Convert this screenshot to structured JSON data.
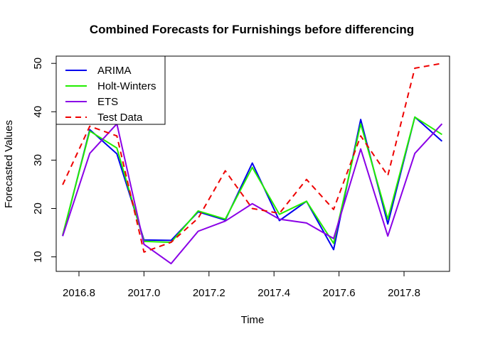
{
  "chart_data": {
    "type": "line",
    "title": "Combined Forecasts for Furnishings before differencing",
    "xlabel": "Time",
    "ylabel": "Forecasted Values",
    "xlim": [
      2016.73,
      2017.94
    ],
    "ylim": [
      7,
      51.5
    ],
    "x_ticks": [
      2016.8,
      2017.0,
      2017.2,
      2017.4,
      2017.6,
      2017.8
    ],
    "x_tick_labels": [
      "2016.8",
      "2017.0",
      "2017.2",
      "2017.4",
      "2017.6",
      "2017.8"
    ],
    "y_ticks": [
      10,
      20,
      30,
      40,
      50
    ],
    "y_tick_labels": [
      "10",
      "20",
      "30",
      "40",
      "50"
    ],
    "grid": false,
    "legend_position": "top-left",
    "x": [
      2016.75,
      2016.8333,
      2016.9167,
      2017.0,
      2017.0833,
      2017.1667,
      2017.25,
      2017.3333,
      2017.4167,
      2017.5,
      2017.5833,
      2017.6667,
      2017.75,
      2017.8333,
      2017.9167
    ],
    "series": [
      {
        "name": "ARIMA",
        "color": "#0000ee",
        "style": "solid",
        "values": [
          14.3,
          36.3,
          31.3,
          13.5,
          13.4,
          19.3,
          17.6,
          29.4,
          17.5,
          21.5,
          11.5,
          38.4,
          16.8,
          38.9,
          33.9
        ]
      },
      {
        "name": "Holt-Winters",
        "color": "#22ee00",
        "style": "solid",
        "values": [
          14.5,
          36.0,
          32.5,
          13.2,
          13.0,
          19.5,
          17.8,
          28.5,
          18.8,
          21.5,
          12.8,
          37.5,
          17.8,
          38.9,
          35.3
        ]
      },
      {
        "name": "ETS",
        "color": "#8a00e6",
        "style": "solid",
        "values": [
          14.3,
          31.4,
          37.5,
          12.6,
          8.6,
          15.3,
          17.4,
          21.0,
          17.8,
          17.0,
          13.8,
          32.3,
          14.3,
          31.4,
          37.5
        ]
      },
      {
        "name": "Test Data",
        "color": "#ee0000",
        "style": "dashed",
        "values": [
          24.9,
          37.0,
          35.0,
          11.0,
          13.0,
          18.0,
          27.8,
          20.0,
          19.0,
          26.0,
          19.8,
          35.0,
          26.8,
          49.0,
          50.0
        ]
      }
    ]
  }
}
